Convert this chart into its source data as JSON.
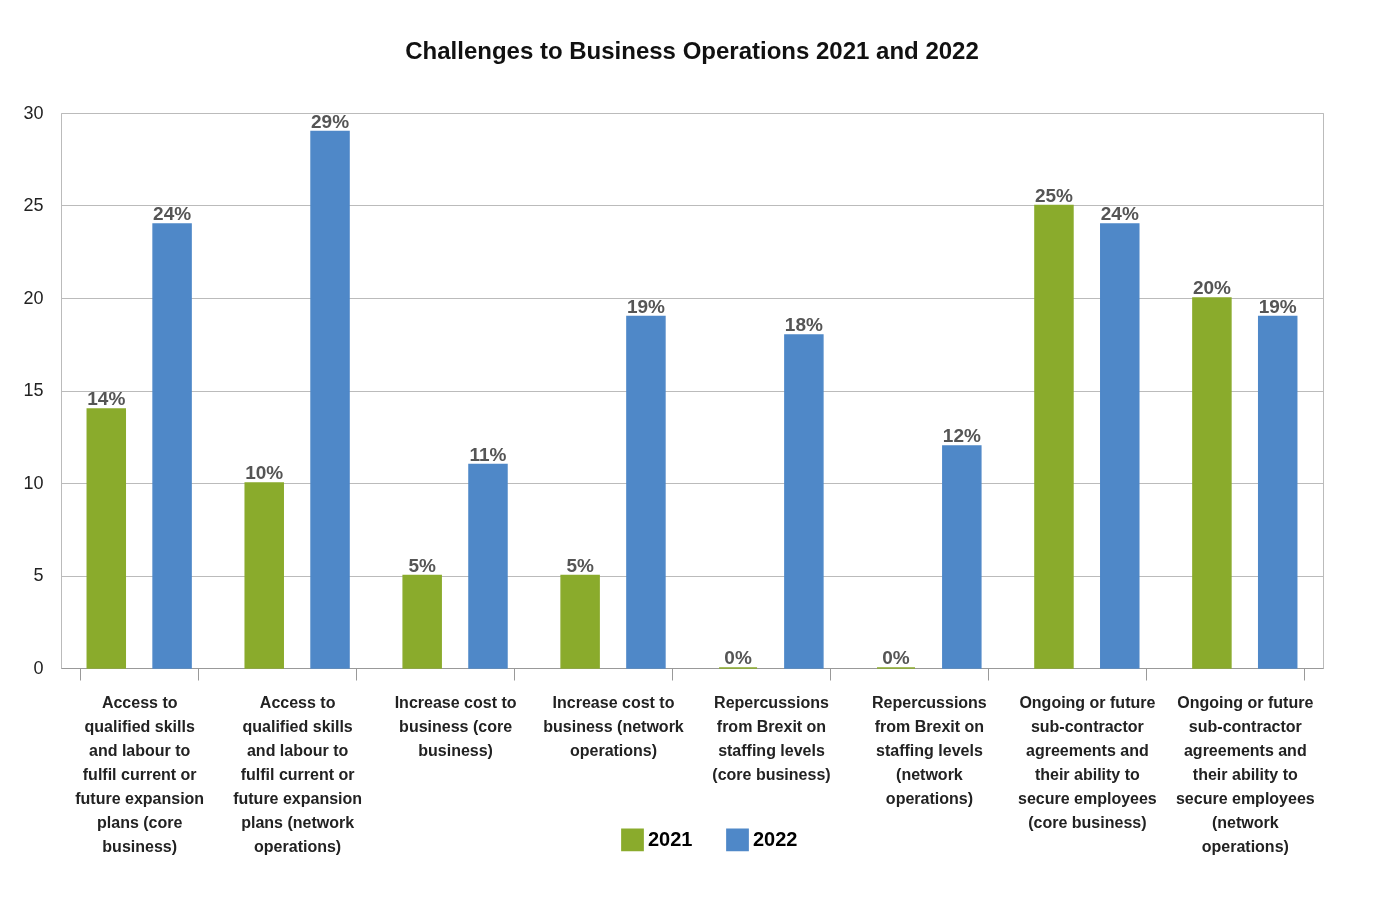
{
  "chart_data": {
    "type": "bar",
    "title": "Challenges to Business Operations 2021 and 2022",
    "categories": [
      "Access to qualified skills and labour to fulfil current or future expansion plans (core business)",
      "Access to qualified skills and labour to fulfil current or future expansion plans (network operations)",
      "Increase cost to business (core business)",
      "Increase cost to business (network operations)",
      "Repercussions from Brexit on staffing levels (core business)",
      "Repercussions from Brexit on staffing levels (network operations)",
      "Ongoing or future sub-contractor agreements and their ability to secure employees (core business)",
      "Ongoing or future sub-contractor agreements and their ability to secure employees (network operations)"
    ],
    "series": [
      {
        "name": "2021",
        "color": "#8aab2c",
        "values": [
          14,
          10,
          5,
          5,
          0,
          0,
          25,
          20
        ],
        "value_labels": [
          "14%",
          "10%",
          "5%",
          "5%",
          "0%",
          "0%",
          "25%",
          "20%"
        ]
      },
      {
        "name": "2022",
        "color": "#4f88c8",
        "values": [
          24,
          29,
          11,
          19,
          18,
          12,
          24,
          19
        ],
        "value_labels": [
          "24%",
          "29%",
          "11%",
          "19%",
          "18%",
          "12%",
          "24%",
          "19%"
        ]
      }
    ],
    "ylim": [
      0,
      30
    ],
    "yticks": [
      0,
      5,
      10,
      15,
      20,
      25,
      30
    ],
    "grid": "y",
    "legend": "bottom"
  }
}
